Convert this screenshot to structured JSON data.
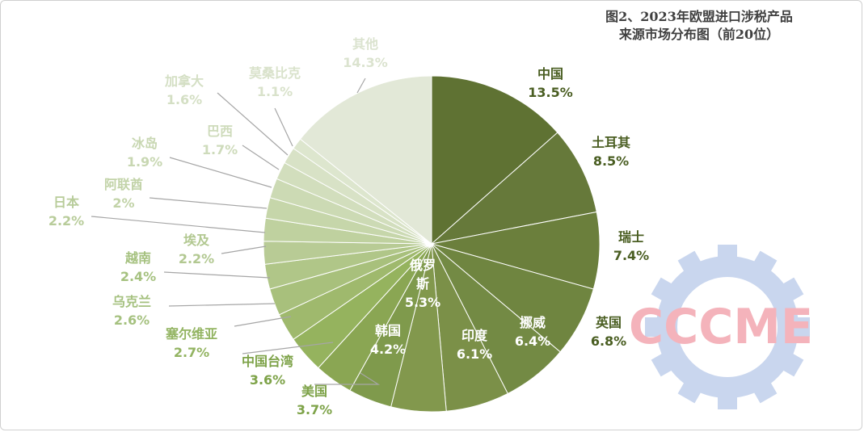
{
  "chart_data": {
    "type": "pie",
    "title_line1": "图2、2023年欧盟进口涉税产品",
    "title_line2": "来源市场分布图（前20位）",
    "unit": "%",
    "slices": [
      {
        "name": "中国",
        "value": 13.5,
        "label": "13.5%",
        "color": "#5f7233"
      },
      {
        "name": "土耳其",
        "value": 8.5,
        "label": "8.5%",
        "color": "#66793a"
      },
      {
        "name": "瑞士",
        "value": 7.4,
        "label": "7.4%",
        "color": "#6b7f3c"
      },
      {
        "name": "英国",
        "value": 6.8,
        "label": "6.8%",
        "color": "#6f8540"
      },
      {
        "name": "挪威",
        "value": 6.4,
        "label": "6.4%",
        "color": "#738a44"
      },
      {
        "name": "印度",
        "value": 6.1,
        "label": "6.1%",
        "color": "#7b9048"
      },
      {
        "name": "俄罗斯",
        "value": 5.3,
        "label": "5.3%",
        "color": "#82984d"
      },
      {
        "name": "韩国",
        "value": 4.2,
        "label": "4.2%",
        "color": "#7f9a4c"
      },
      {
        "name": "美国",
        "value": 3.7,
        "label": "3.7%",
        "color": "#8aa653"
      },
      {
        "name": "中国台湾",
        "value": 3.6,
        "label": "3.6%",
        "color": "#95b35e"
      },
      {
        "name": "塞尔维亚",
        "value": 2.7,
        "label": "2.7%",
        "color": "#9fb96d"
      },
      {
        "name": "乌克兰",
        "value": 2.6,
        "label": "2.6%",
        "color": "#a8c07c"
      },
      {
        "name": "越南",
        "value": 2.4,
        "label": "2.4%",
        "color": "#b0c688"
      },
      {
        "name": "埃及",
        "value": 2.2,
        "label": "2.2%",
        "color": "#b8cb95"
      },
      {
        "name": "日本",
        "value": 2.2,
        "label": "2.2%",
        "color": "#bfd19f"
      },
      {
        "name": "阿联酋",
        "value": 2.0,
        "label": "2%",
        "color": "#c6d6aa"
      },
      {
        "name": "冰岛",
        "value": 1.9,
        "label": "1.9%",
        "color": "#ccdab4"
      },
      {
        "name": "巴西",
        "value": 1.7,
        "label": "1.7%",
        "color": "#d2debd"
      },
      {
        "name": "加拿大",
        "value": 1.6,
        "label": "1.6%",
        "color": "#d8e2c6"
      },
      {
        "name": "莫桑比克",
        "value": 1.1,
        "label": "1.1%",
        "color": "#dde6ce"
      },
      {
        "name": "其他",
        "value": 14.3,
        "label": "14.3%",
        "color": "#e2e8d7"
      }
    ]
  },
  "watermark": {
    "text": "CCCME",
    "colors": {
      "text": "#f4b3bb",
      "gear": "#c9d6ee"
    }
  }
}
